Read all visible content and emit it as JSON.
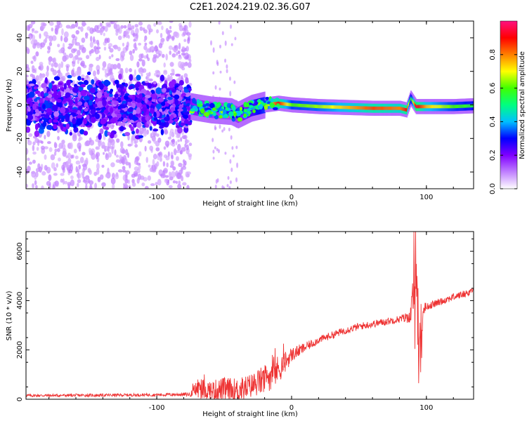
{
  "figure": {
    "title": "C2E1.2024.219.02.36.G07"
  },
  "chart_data": [
    {
      "type": "heatmap",
      "xlabel": "Height of straight line (km)",
      "ylabel": "Frequency (Hz)",
      "xlim": [
        -197,
        135
      ],
      "ylim": [
        -50,
        50
      ],
      "xticks": [
        -100,
        0,
        100
      ],
      "xtick_labels": [
        "-100",
        "0",
        "100"
      ],
      "yticks": [
        -40,
        -20,
        0,
        20,
        40
      ],
      "ytick_labels": [
        "-40",
        "-20",
        "0",
        "20",
        "40"
      ],
      "colorbar": {
        "label": "Normalized spectral amplitude",
        "range": [
          0,
          1
        ],
        "ticks": [
          0,
          0.2,
          0.4,
          0.6,
          0.8
        ],
        "tick_labels": [
          "0.0",
          "0.2",
          "0.4",
          "0.6",
          "0.8"
        ],
        "colors": [
          "#ffffff",
          "#c080ff",
          "#8000ff",
          "#0000ff",
          "#00c0ff",
          "#00ff80",
          "#40ff00",
          "#ffff00",
          "#ff8000",
          "#ff0000",
          "#ff1080"
        ]
      },
      "ridge": {
        "x": [
          -197,
          -75,
          -60,
          -45,
          -40,
          -30,
          -20,
          -10,
          0,
          20,
          40,
          60,
          80,
          85,
          88,
          92,
          100,
          120,
          135
        ],
        "freq": [
          0,
          -1,
          -3,
          -4,
          -6,
          -2,
          0,
          1,
          0,
          -1,
          -1.5,
          -2,
          -2,
          -3,
          4,
          -1,
          -1,
          -1,
          -0.5
        ],
        "amplitude": [
          0.35,
          0.35,
          0.3,
          0.28,
          0.3,
          0.45,
          0.6,
          0.9,
          0.6,
          0.65,
          0.75,
          0.85,
          0.8,
          0.9,
          0.5,
          0.95,
          0.75,
          0.6,
          0.55
        ]
      },
      "noise_region": {
        "x_range": [
          -197,
          -75
        ],
        "freq_spread": 50,
        "amplitude": [
          0.1,
          0.35
        ]
      }
    },
    {
      "type": "line",
      "xlabel": "Height of straight line (km)",
      "ylabel": "SNR (10 * v/v)",
      "xlim": [
        -197,
        135
      ],
      "ylim": [
        0,
        6800
      ],
      "xticks": [
        -100,
        0,
        100
      ],
      "xtick_labels": [
        "-100",
        "0",
        "100"
      ],
      "yticks": [
        0,
        2000,
        4000,
        6000
      ],
      "ytick_labels": [
        "0",
        "2000",
        "4000",
        "6000"
      ],
      "color": "#ee3333",
      "series": [
        {
          "x": [
            -197,
            -150,
            -100,
            -75,
            -70,
            -60,
            -50,
            -40,
            -30,
            -20,
            -10,
            0,
            10,
            20,
            30,
            40,
            50,
            60,
            70,
            80,
            88,
            92,
            94,
            96,
            98,
            100,
            110,
            120,
            130,
            135
          ],
          "y": [
            150,
            160,
            180,
            200,
            450,
            350,
            400,
            350,
            550,
            800,
            1200,
            1800,
            2100,
            2400,
            2600,
            2800,
            2950,
            3050,
            3150,
            3250,
            3350,
            4800,
            3000,
            2500,
            3700,
            3750,
            3950,
            4150,
            4300,
            4450
          ],
          "noise_amplitude": [
            60,
            60,
            60,
            80,
            450,
            400,
            500,
            500,
            500,
            600,
            600,
            300,
            200,
            150,
            150,
            150,
            150,
            150,
            150,
            150,
            250,
            1500,
            2500,
            1500,
            300,
            150,
            150,
            150,
            150,
            150
          ]
        }
      ]
    }
  ]
}
